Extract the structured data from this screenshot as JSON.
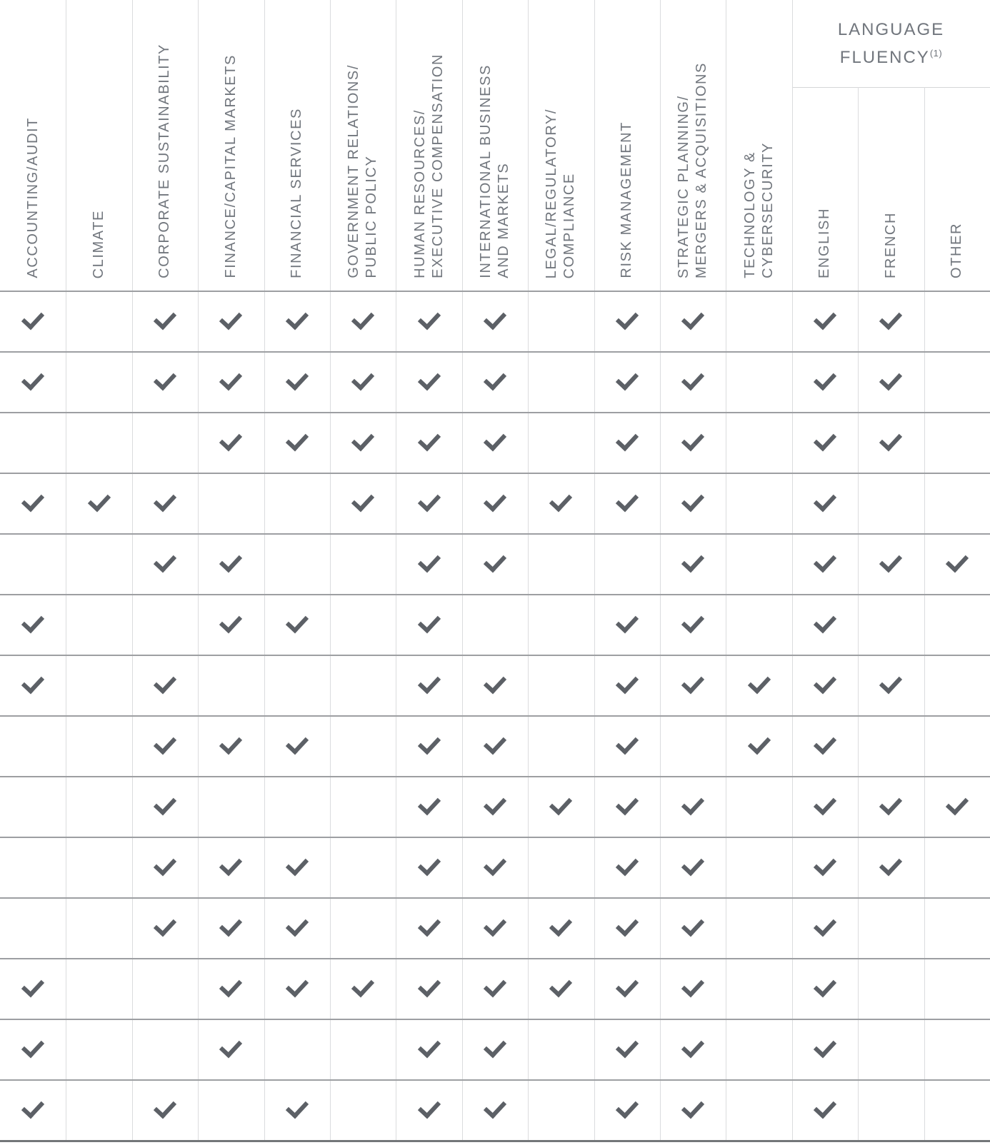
{
  "header": {
    "language_fluency": {
      "line1": "LANGUAGE",
      "line2": "FLUENCY",
      "footnote": "(1)"
    }
  },
  "icons": {
    "check": "✔"
  },
  "colors": {
    "check": "#5c6066",
    "header_text": "#71767d",
    "grid_line_light": "#dbdcde",
    "row_line": "#9d9fa2",
    "bottom_line": "#737679"
  },
  "chart_data": {
    "type": "table",
    "group_header": "LANGUAGE FLUENCY(1)",
    "group_header_spans_columns": [
      "ENGLISH",
      "FRENCH",
      "OTHER"
    ],
    "columns": [
      {
        "id": "accounting-audit",
        "label": "ACCOUNTING/AUDIT"
      },
      {
        "id": "climate",
        "label": "CLIMATE"
      },
      {
        "id": "corporate-sustainability",
        "label": "CORPORATE SUSTAINABILITY"
      },
      {
        "id": "finance-capital-markets",
        "label": "FINANCE/CAPITAL MARKETS"
      },
      {
        "id": "financial-services",
        "label": "FINANCIAL SERVICES"
      },
      {
        "id": "government-relations-public-policy",
        "label": "GOVERNMENT RELATIONS/\nPUBLIC POLICY"
      },
      {
        "id": "human-resources-executive-compensation",
        "label": "HUMAN RESOURCES/\nEXECUTIVE COMPENSATION"
      },
      {
        "id": "international-business-and-markets",
        "label": "INTERNATIONAL BUSINESS\nAND MARKETS"
      },
      {
        "id": "legal-regulatory-compliance",
        "label": "LEGAL/REGULATORY/\nCOMPLIANCE"
      },
      {
        "id": "risk-management",
        "label": "RISK MANAGEMENT"
      },
      {
        "id": "strategic-planning-mergers-acquisitions",
        "label": "STRATEGIC PLANNING/\nMERGERS & ACQUISITIONS"
      },
      {
        "id": "technology-cybersecurity",
        "label": "TECHNOLOGY &\nCYBERSECURITY"
      },
      {
        "id": "english",
        "label": "ENGLISH",
        "group": "language-fluency"
      },
      {
        "id": "french",
        "label": "FRENCH",
        "group": "language-fluency"
      },
      {
        "id": "other",
        "label": "OTHER",
        "group": "language-fluency"
      }
    ],
    "rows": [
      [
        1,
        0,
        1,
        1,
        1,
        1,
        1,
        1,
        0,
        1,
        1,
        0,
        1,
        1,
        0
      ],
      [
        1,
        0,
        1,
        1,
        1,
        1,
        1,
        1,
        0,
        1,
        1,
        0,
        1,
        1,
        0
      ],
      [
        0,
        0,
        0,
        1,
        1,
        1,
        1,
        1,
        0,
        1,
        1,
        0,
        1,
        1,
        0
      ],
      [
        1,
        1,
        1,
        0,
        0,
        1,
        1,
        1,
        1,
        1,
        1,
        0,
        1,
        0,
        0
      ],
      [
        0,
        0,
        1,
        1,
        0,
        0,
        1,
        1,
        0,
        0,
        1,
        0,
        1,
        1,
        1
      ],
      [
        1,
        0,
        0,
        1,
        1,
        0,
        1,
        0,
        0,
        1,
        1,
        0,
        1,
        0,
        0
      ],
      [
        1,
        0,
        1,
        0,
        0,
        0,
        1,
        1,
        0,
        1,
        1,
        1,
        1,
        1,
        0
      ],
      [
        0,
        0,
        1,
        1,
        1,
        0,
        1,
        1,
        0,
        1,
        0,
        1,
        1,
        0,
        0
      ],
      [
        0,
        0,
        1,
        0,
        0,
        0,
        1,
        1,
        1,
        1,
        1,
        0,
        1,
        1,
        1
      ],
      [
        0,
        0,
        1,
        1,
        1,
        0,
        1,
        1,
        0,
        1,
        1,
        0,
        1,
        1,
        0
      ],
      [
        0,
        0,
        1,
        1,
        1,
        0,
        1,
        1,
        1,
        1,
        1,
        0,
        1,
        0,
        0
      ],
      [
        1,
        0,
        0,
        1,
        1,
        1,
        1,
        1,
        1,
        1,
        1,
        0,
        1,
        0,
        0
      ],
      [
        1,
        0,
        0,
        1,
        0,
        0,
        1,
        1,
        0,
        1,
        1,
        0,
        1,
        0,
        0
      ],
      [
        1,
        0,
        1,
        0,
        1,
        0,
        1,
        1,
        0,
        1,
        1,
        0,
        1,
        0,
        0
      ]
    ]
  }
}
